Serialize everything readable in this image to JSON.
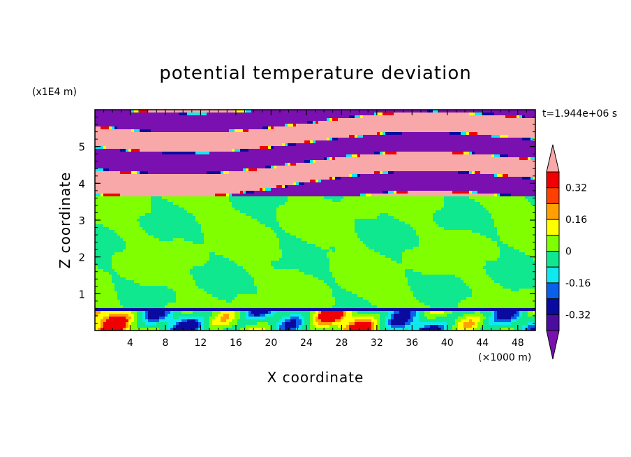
{
  "chart_data": {
    "type": "heatmap",
    "title": "potential temperature deviation",
    "xlabel": "X coordinate",
    "ylabel": "Z coordinate",
    "x_unit": "(×1000 m)",
    "y_unit": "(x1E4 m)",
    "time_label": "t=1.944e+06 s",
    "xlim": [
      0,
      50
    ],
    "ylim": [
      0,
      6
    ],
    "x_ticks": [
      "4",
      "8",
      "12",
      "16",
      "20",
      "24",
      "28",
      "32",
      "36",
      "40",
      "44",
      "48"
    ],
    "y_ticks": [
      "1",
      "2",
      "3",
      "4",
      "5"
    ],
    "colorbar": {
      "levels": [
        -0.4,
        -0.32,
        -0.24,
        -0.16,
        -0.08,
        0,
        0.08,
        0.16,
        0.24,
        0.32,
        0.4
      ],
      "labels": [
        "0.32",
        "0.16",
        "0",
        "-0.16",
        "-0.32"
      ],
      "colors": [
        "#7a10b0",
        "#4b0ca0",
        "#0a0aa0",
        "#0a60e8",
        "#10e8f0",
        "#10e890",
        "#80ff00",
        "#ffff00",
        "#ffa000",
        "#ff4000",
        "#f00000",
        "#f8a8a8"
      ]
    },
    "regions": [
      {
        "z_range": [
          0,
          0.6
        ],
        "description_values": "mixed -0.4 to 0.4 near surface"
      },
      {
        "z_range": [
          0.6,
          3.6
        ],
        "description_values": "approximately -0.08 to 0.08"
      },
      {
        "z_range": [
          3.6,
          6.0
        ],
        "description_values": "alternating bands below -0.4 and above 0.4"
      }
    ]
  }
}
